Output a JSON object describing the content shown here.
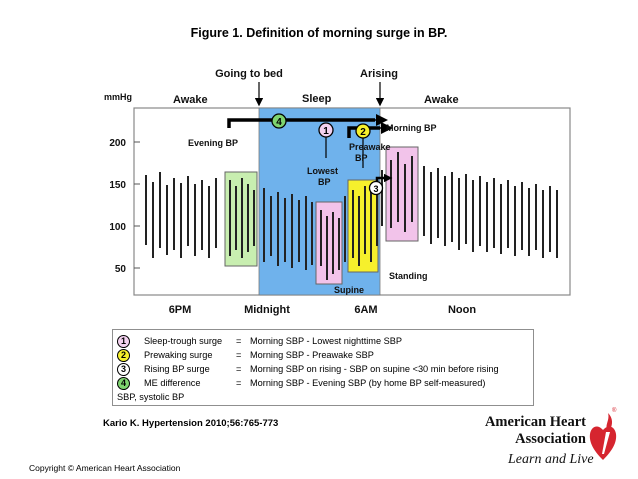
{
  "title": "Figure 1. Definition of morning surge in BP.",
  "diagram": {
    "top_labels": {
      "going_to_bed": "Going to bed",
      "arising": "Arising"
    },
    "phase_labels": {
      "awake_left": "Awake",
      "sleep": "Sleep",
      "awake_right": "Awake"
    },
    "y_unit": "mmHg",
    "y_ticks": [
      "200",
      "150",
      "100",
      "50"
    ],
    "x_ticks": [
      "6PM",
      "Midnight",
      "6AM",
      "Noon"
    ],
    "annotations": {
      "evening_bp": "Evening BP",
      "lowest_bp_1": "Lowest",
      "lowest_bp_2": "BP",
      "preawake_bp_1": "Preawake",
      "preawake_bp_2": "BP",
      "morning_bp": "Morning BP",
      "supine": "Supine",
      "standing": "Standing"
    },
    "markers": [
      "1",
      "2",
      "3",
      "4"
    ],
    "colors": {
      "sleep_band": "#6fb2ec",
      "evening_box": "#c8eeb0",
      "lowest_box": "#f2c3ea",
      "preawake_box": "#f6f02c",
      "morning_box": "#f2c3ea",
      "marker_2_fill": "#f6f02c",
      "marker_4_fill": "#7ed36f"
    }
  },
  "legend": {
    "rows": [
      {
        "num": "1",
        "name": "Sleep-trough surge",
        "eq": "=",
        "def": "Morning SBP -  Lowest nighttime SBP",
        "fill": "#f3d1ef"
      },
      {
        "num": "2",
        "name": "Prewaking surge",
        "eq": "=",
        "def": "Morning SBP - Preawake SBP",
        "fill": "#f6f02c"
      },
      {
        "num": "3",
        "name": "Rising BP surge",
        "eq": "=",
        "def": "Morning SBP on rising - SBP on supine <30 min before rising",
        "fill": "#ffffff"
      },
      {
        "num": "4",
        "name": "ME difference",
        "eq": "=",
        "def": "Morning SBP  -  Evening SBP (by home BP self-measured)",
        "fill": "#7ed36f"
      }
    ],
    "footnote": "SBP, systolic BP"
  },
  "citation": "Kario K. Hypertension 2010;56:765-773",
  "copyright": "Copyright © American Heart Association",
  "logo": {
    "line1": "American Heart",
    "line2": "Association",
    "tagline": "Learn and Live",
    "registered": "®",
    "accent": "#d6252f"
  }
}
